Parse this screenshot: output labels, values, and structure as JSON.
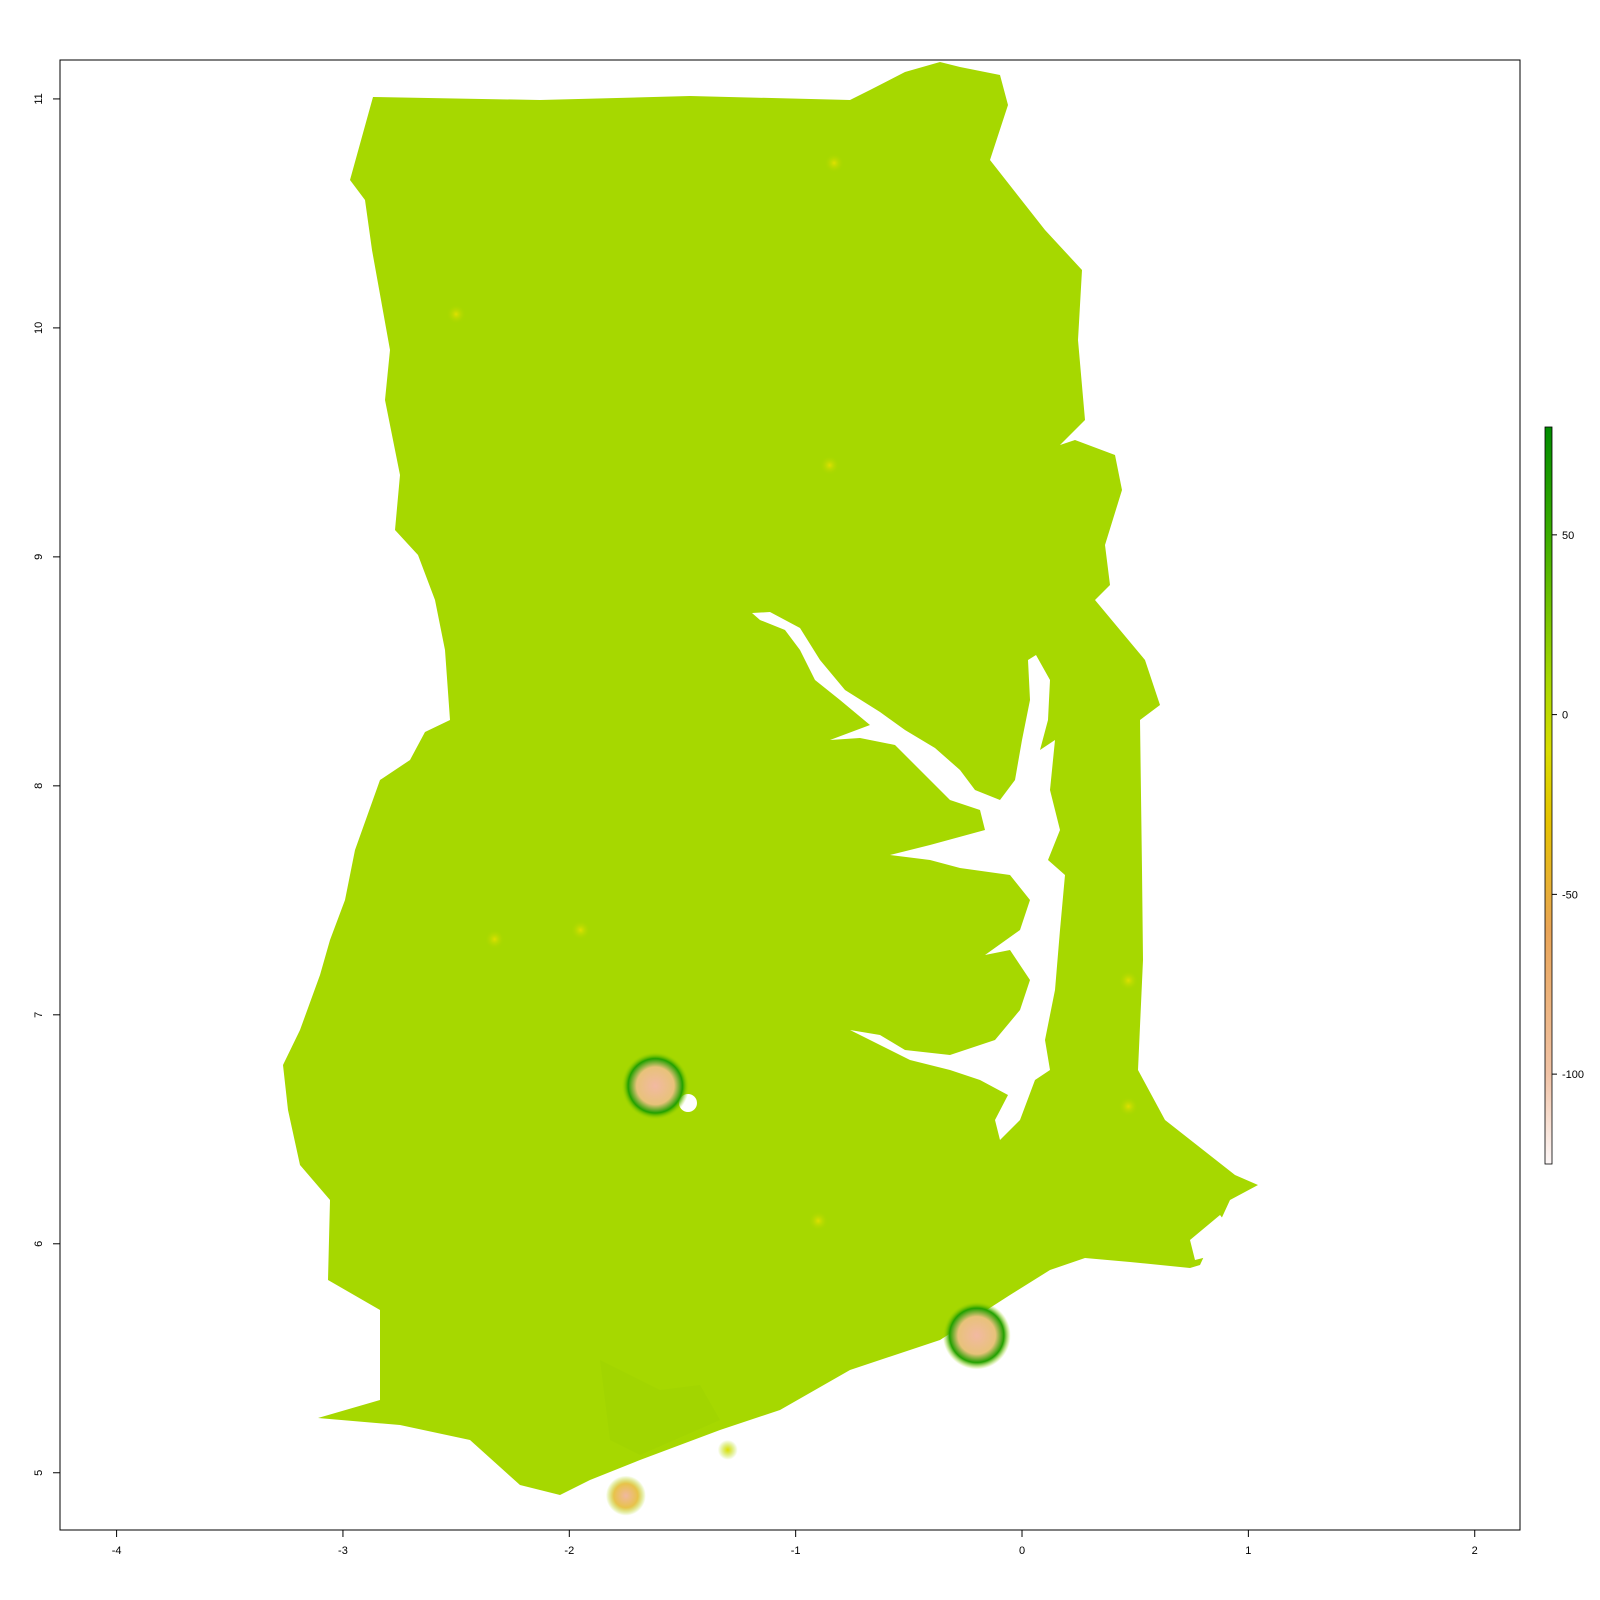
{
  "map": {
    "xlim": [
      -4.25,
      2.2
    ],
    "ylim": [
      4.75,
      11.17
    ],
    "x_ticks": [
      -4,
      -3,
      -2,
      -1,
      0,
      1,
      2
    ],
    "y_ticks": [
      5,
      6,
      7,
      8,
      9,
      10,
      11
    ],
    "x_tick_labels": [
      "-4",
      "-3",
      "-2",
      "-1",
      "0",
      "1",
      "2"
    ],
    "y_tick_labels": [
      "5",
      "6",
      "7",
      "8",
      "9",
      "10",
      "11"
    ],
    "raster_base_color": "#a6d800",
    "water_color": "#ffffff",
    "hotspots": [
      {
        "lon": -1.62,
        "lat": 6.69,
        "type": "city-large"
      },
      {
        "lon": -0.2,
        "lat": 5.6,
        "type": "city-large"
      },
      {
        "lon": -1.75,
        "lat": 4.9,
        "type": "city-medium"
      },
      {
        "lon": -0.85,
        "lat": 9.4,
        "type": "town"
      },
      {
        "lon": -0.83,
        "lat": 10.72,
        "type": "town"
      },
      {
        "lon": -2.5,
        "lat": 10.06,
        "type": "town"
      },
      {
        "lon": 0.47,
        "lat": 6.6,
        "type": "town"
      },
      {
        "lon": 0.47,
        "lat": 7.15,
        "type": "town"
      },
      {
        "lon": -1.95,
        "lat": 7.37,
        "type": "town"
      },
      {
        "lon": -2.33,
        "lat": 7.33,
        "type": "town"
      },
      {
        "lon": -0.9,
        "lat": 6.1,
        "type": "town"
      },
      {
        "lon": -1.3,
        "lat": 5.1,
        "type": "town"
      }
    ]
  },
  "legend": {
    "ticks": [
      50,
      0,
      -50,
      -100
    ],
    "tick_labels": [
      "50",
      "0",
      "-50",
      "-100"
    ],
    "range": [
      -125,
      80
    ],
    "colors": [
      "#fdf7f7",
      "#f1c3a6",
      "#e9a456",
      "#e6c200",
      "#d9dd00",
      "#a6d800",
      "#3aad00",
      "#008b00"
    ],
    "color_stops": [
      -125,
      -100,
      -60,
      -30,
      -10,
      10,
      50,
      80
    ]
  }
}
